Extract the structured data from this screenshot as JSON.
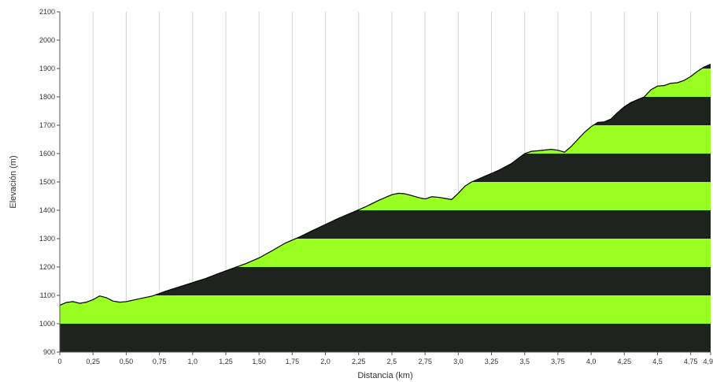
{
  "chart_data": {
    "type": "area",
    "title": "",
    "xlabel": "Distancia (km)",
    "ylabel": "Elevación (m)",
    "xlim": [
      0,
      4.9
    ],
    "ylim": [
      900,
      2100
    ],
    "x_ticks": [
      0,
      0.25,
      0.5,
      0.75,
      1.0,
      1.25,
      1.5,
      1.75,
      2.0,
      2.25,
      2.5,
      2.75,
      3.0,
      3.25,
      3.5,
      3.75,
      4.0,
      4.25,
      4.5,
      4.75,
      4.9
    ],
    "x_tick_labels": [
      "0",
      "0,25",
      "0,50",
      "0,75",
      "1,0",
      "1,25",
      "1,50",
      "1,75",
      "2,0",
      "2,25",
      "2,5",
      "2,75",
      "3,0",
      "3,25",
      "3,5",
      "3,75",
      "4,0",
      "4,25",
      "4,5",
      "4,75",
      "4,9"
    ],
    "y_ticks": [
      900,
      1000,
      1100,
      1200,
      1300,
      1400,
      1500,
      1600,
      1700,
      1800,
      1900,
      2000,
      2100
    ],
    "y_tick_labels": [
      "900",
      "1000",
      "1100",
      "1200",
      "1300",
      "1400",
      "1500",
      "1600",
      "1700",
      "1800",
      "1900",
      "2000",
      "2100"
    ],
    "grid": "vertical",
    "band_colors": [
      "#1e231e",
      "#99ff22"
    ],
    "outline_color": "#000000",
    "x": [
      0,
      0.05,
      0.1,
      0.15,
      0.2,
      0.25,
      0.3,
      0.35,
      0.4,
      0.45,
      0.5,
      0.6,
      0.7,
      0.8,
      0.9,
      1.0,
      1.1,
      1.2,
      1.3,
      1.4,
      1.5,
      1.6,
      1.7,
      1.8,
      1.9,
      2.0,
      2.1,
      2.2,
      2.3,
      2.4,
      2.5,
      2.55,
      2.6,
      2.65,
      2.7,
      2.75,
      2.8,
      2.85,
      2.9,
      2.95,
      3.0,
      3.05,
      3.1,
      3.2,
      3.3,
      3.4,
      3.5,
      3.55,
      3.6,
      3.7,
      3.75,
      3.8,
      3.85,
      3.9,
      3.95,
      4.0,
      4.05,
      4.1,
      4.15,
      4.2,
      4.25,
      4.3,
      4.35,
      4.4,
      4.45,
      4.5,
      4.55,
      4.6,
      4.65,
      4.7,
      4.75,
      4.8,
      4.85,
      4.9
    ],
    "values": [
      1065,
      1075,
      1078,
      1072,
      1076,
      1085,
      1098,
      1092,
      1080,
      1076,
      1078,
      1088,
      1098,
      1115,
      1130,
      1145,
      1160,
      1178,
      1195,
      1212,
      1232,
      1258,
      1285,
      1305,
      1328,
      1350,
      1372,
      1392,
      1412,
      1435,
      1455,
      1460,
      1458,
      1452,
      1445,
      1440,
      1448,
      1446,
      1442,
      1438,
      1460,
      1485,
      1500,
      1520,
      1540,
      1565,
      1600,
      1608,
      1610,
      1615,
      1612,
      1605,
      1625,
      1650,
      1675,
      1695,
      1710,
      1712,
      1722,
      1745,
      1765,
      1780,
      1790,
      1800,
      1825,
      1838,
      1840,
      1848,
      1850,
      1858,
      1872,
      1890,
      1905,
      1915
    ]
  }
}
